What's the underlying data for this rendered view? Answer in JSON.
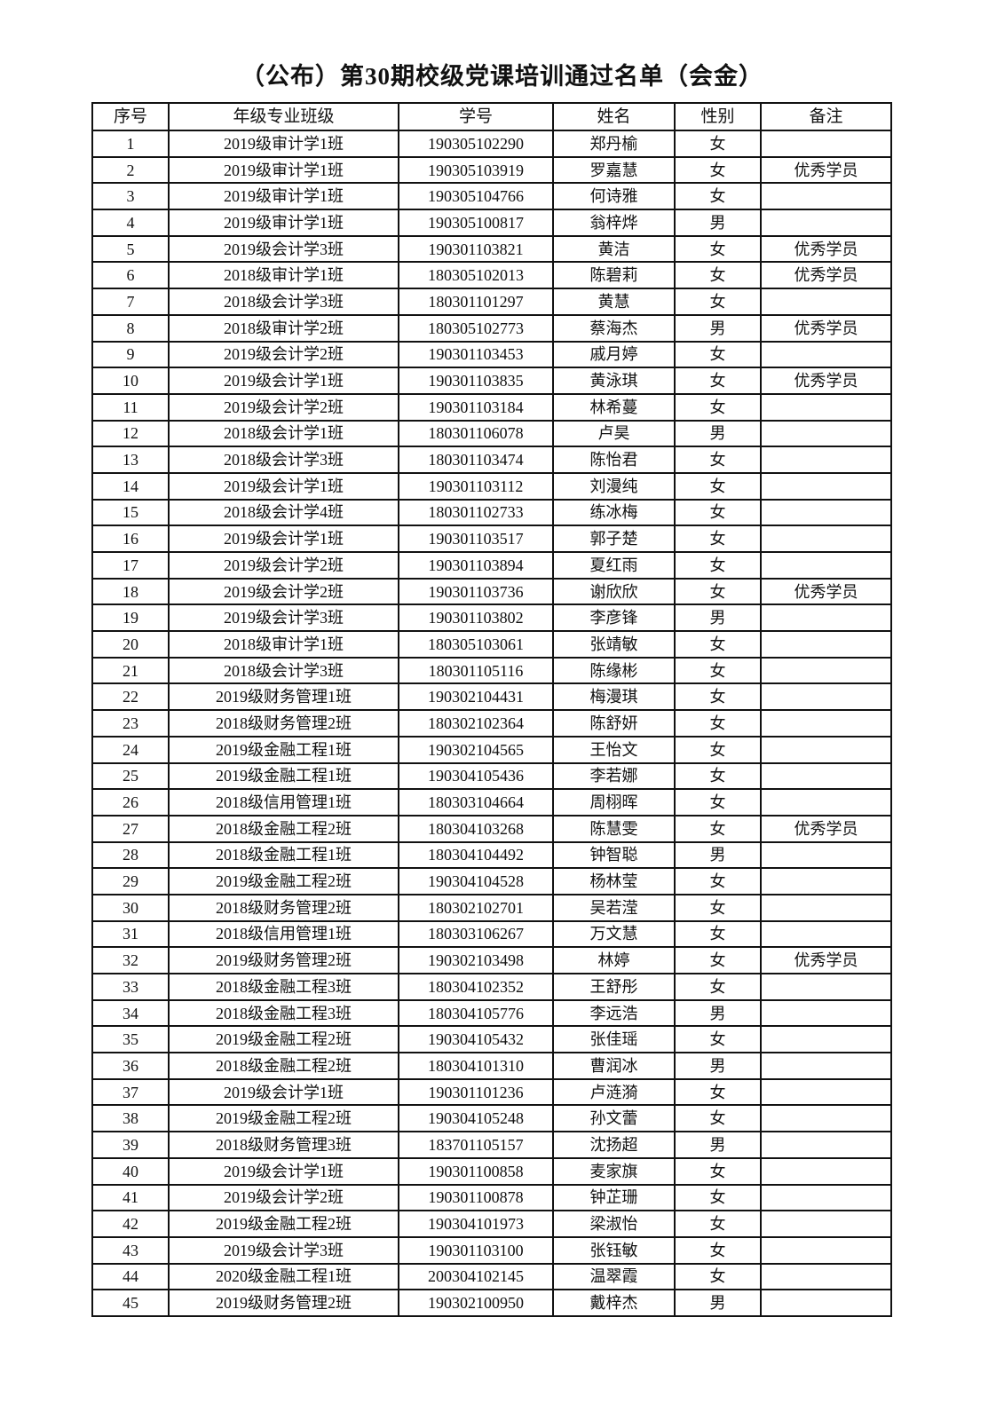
{
  "title": "（公布）第30期校级党课培训通过名单（会金）",
  "columns": [
    "序号",
    "年级专业班级",
    "学号",
    "姓名",
    "性别",
    "备注"
  ],
  "rows": [
    [
      "1",
      "2019级审计学1班",
      "190305102290",
      "郑丹榆",
      "女",
      ""
    ],
    [
      "2",
      "2019级审计学1班",
      "190305103919",
      "罗嘉慧",
      "女",
      "优秀学员"
    ],
    [
      "3",
      "2019级审计学1班",
      "190305104766",
      "何诗雅",
      "女",
      ""
    ],
    [
      "4",
      "2019级审计学1班",
      "190305100817",
      "翁梓烨",
      "男",
      ""
    ],
    [
      "5",
      "2019级会计学3班",
      "190301103821",
      "黄洁",
      "女",
      "优秀学员"
    ],
    [
      "6",
      "2018级审计学1班",
      "180305102013",
      "陈碧莉",
      "女",
      "优秀学员"
    ],
    [
      "7",
      "2018级会计学3班",
      "180301101297",
      "黄慧",
      "女",
      ""
    ],
    [
      "8",
      "2018级审计学2班",
      "180305102773",
      "蔡海杰",
      "男",
      "优秀学员"
    ],
    [
      "9",
      "2019级会计学2班",
      "190301103453",
      "戚月婷",
      "女",
      ""
    ],
    [
      "10",
      "2019级会计学1班",
      "190301103835",
      "黄泳琪",
      "女",
      "优秀学员"
    ],
    [
      "11",
      "2019级会计学2班",
      "190301103184",
      "林希蔓",
      "女",
      ""
    ],
    [
      "12",
      "2018级会计学1班",
      "180301106078",
      "卢昊",
      "男",
      ""
    ],
    [
      "13",
      "2018级会计学3班",
      "180301103474",
      "陈怡君",
      "女",
      ""
    ],
    [
      "14",
      "2019级会计学1班",
      "190301103112",
      "刘漫纯",
      "女",
      ""
    ],
    [
      "15",
      "2018级会计学4班",
      "180301102733",
      "练冰梅",
      "女",
      ""
    ],
    [
      "16",
      "2019级会计学1班",
      "190301103517",
      "郭子楚",
      "女",
      ""
    ],
    [
      "17",
      "2019级会计学2班",
      "190301103894",
      "夏红雨",
      "女",
      ""
    ],
    [
      "18",
      "2019级会计学2班",
      "190301103736",
      "谢欣欣",
      "女",
      "优秀学员"
    ],
    [
      "19",
      "2019级会计学3班",
      "190301103802",
      "李彦锋",
      "男",
      ""
    ],
    [
      "20",
      "2018级审计学1班",
      "180305103061",
      "张靖敏",
      "女",
      ""
    ],
    [
      "21",
      "2018级会计学3班",
      "180301105116",
      "陈缘彬",
      "女",
      ""
    ],
    [
      "22",
      "2019级财务管理1班",
      "190302104431",
      "梅漫琪",
      "女",
      ""
    ],
    [
      "23",
      "2018级财务管理2班",
      "180302102364",
      "陈舒妍",
      "女",
      ""
    ],
    [
      "24",
      "2019级金融工程1班",
      "190302104565",
      "王怡文",
      "女",
      ""
    ],
    [
      "25",
      "2019级金融工程1班",
      "190304105436",
      "李若娜",
      "女",
      ""
    ],
    [
      "26",
      "2018级信用管理1班",
      "180303104664",
      "周栩晖",
      "女",
      ""
    ],
    [
      "27",
      "2018级金融工程2班",
      "180304103268",
      "陈慧雯",
      "女",
      "优秀学员"
    ],
    [
      "28",
      "2018级金融工程1班",
      "180304104492",
      "钟智聪",
      "男",
      ""
    ],
    [
      "29",
      "2019级金融工程2班",
      "190304104528",
      "杨林莹",
      "女",
      ""
    ],
    [
      "30",
      "2018级财务管理2班",
      "180302102701",
      "吴若滢",
      "女",
      ""
    ],
    [
      "31",
      "2018级信用管理1班",
      "180303106267",
      "万文慧",
      "女",
      ""
    ],
    [
      "32",
      "2019级财务管理2班",
      "190302103498",
      "林婷",
      "女",
      "优秀学员"
    ],
    [
      "33",
      "2018级金融工程3班",
      "180304102352",
      "王舒彤",
      "女",
      ""
    ],
    [
      "34",
      "2018级金融工程3班",
      "180304105776",
      "李远浩",
      "男",
      ""
    ],
    [
      "35",
      "2019级金融工程2班",
      "190304105432",
      "张佳瑶",
      "女",
      ""
    ],
    [
      "36",
      "2018级金融工程2班",
      "180304101310",
      "曹润冰",
      "男",
      ""
    ],
    [
      "37",
      "2019级会计学1班",
      "190301101236",
      "卢涟漪",
      "女",
      ""
    ],
    [
      "38",
      "2019级金融工程2班",
      "190304105248",
      "孙文蕾",
      "女",
      ""
    ],
    [
      "39",
      "2018级财务管理3班",
      "183701105157",
      "沈扬超",
      "男",
      ""
    ],
    [
      "40",
      "2019级会计学1班",
      "190301100858",
      "麦家旗",
      "女",
      ""
    ],
    [
      "41",
      "2019级会计学2班",
      "190301100878",
      "钟芷珊",
      "女",
      ""
    ],
    [
      "42",
      "2019级金融工程2班",
      "190304101973",
      "梁淑怡",
      "女",
      ""
    ],
    [
      "43",
      "2019级会计学3班",
      "190301103100",
      "张钰敏",
      "女",
      ""
    ],
    [
      "44",
      "2020级金融工程1班",
      "200304102145",
      "温翠霞",
      "女",
      ""
    ],
    [
      "45",
      "2019级财务管理2班",
      "190302100950",
      "戴梓杰",
      "男",
      ""
    ]
  ]
}
